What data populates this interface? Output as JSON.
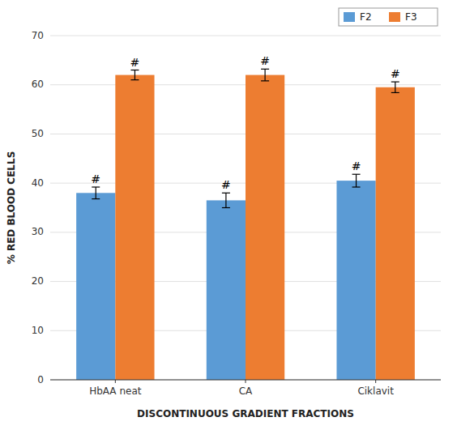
{
  "chart_data": {
    "type": "bar",
    "categories": [
      "HbAA neat",
      "CA",
      "Ciklavit"
    ],
    "series": [
      {
        "name": "F2",
        "color": "#5B9BD5",
        "values": [
          38.0,
          36.5,
          40.5
        ],
        "errors": [
          1.2,
          1.5,
          1.3
        ],
        "annotations": [
          "#",
          "#",
          "#"
        ]
      },
      {
        "name": "F3",
        "color": "#ED7D31",
        "values": [
          62.0,
          62.0,
          59.5
        ],
        "errors": [
          1.0,
          1.2,
          1.1
        ],
        "annotations": [
          "#",
          "#",
          "#"
        ]
      }
    ],
    "x_label": "DISCONTINUOUS GRADIENT FRACTIONS",
    "y_label": "% RED BLOOD CELLS",
    "ylim": [
      0,
      70
    ],
    "yticks": [
      0,
      10,
      20,
      30,
      40,
      50,
      60,
      70
    ],
    "grid": true,
    "legend": "upper right"
  }
}
